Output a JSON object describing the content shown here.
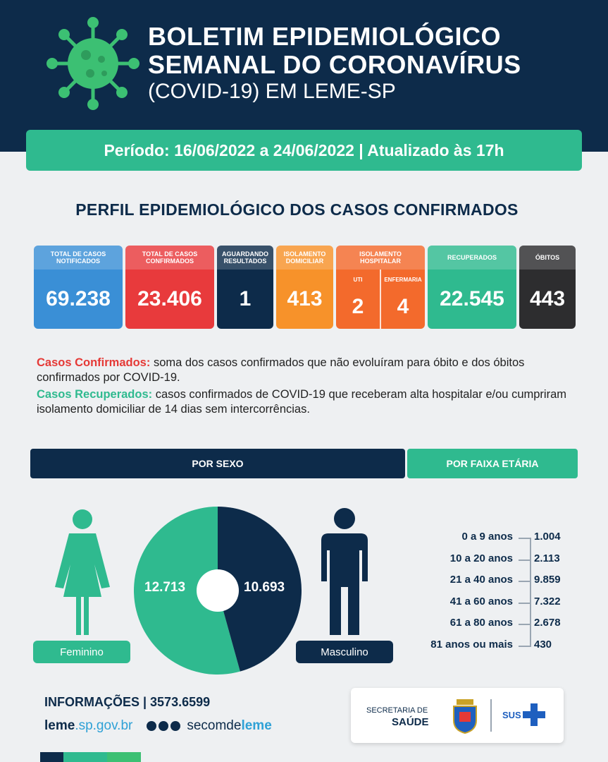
{
  "header": {
    "line1": "BOLETIM EPIDEMIOLÓGICO",
    "line2": "SEMANAL DO CORONAVÍRUS",
    "line3": "(COVID-19) EM LEME-SP"
  },
  "period": "Período: 16/06/2022 a 24/06/2022 | Atualizado às 17h",
  "section_title": "PERFIL EPIDEMIOLÓGICO DOS CASOS CONFIRMADOS",
  "cards": {
    "notificados": {
      "label": "TOTAL DE CASOS NOTIFICADOS",
      "value": "69.238",
      "color": "#3a8fd6"
    },
    "confirmados": {
      "label": "TOTAL DE CASOS CONFIRMADOS",
      "value": "23.406",
      "color": "#e83a3c"
    },
    "aguardando": {
      "label": "AGUARDANDO RESULTADOS",
      "value": "1",
      "color": "#0d2b4a"
    },
    "isolamento_domiciliar": {
      "label": "ISOLAMENTO DOMICILIAR",
      "value": "413",
      "color": "#f7922a"
    },
    "isolamento_hospitalar": {
      "label": "ISOLAMENTO HOSPITALAR",
      "uti_label": "UTI",
      "uti_value": "2",
      "enfermaria_label": "ENFERMARIA",
      "enfermaria_value": "4",
      "color": "#f36a2c"
    },
    "recuperados": {
      "label": "RECUPERADOS",
      "value": "22.545",
      "color": "#2fba8f"
    },
    "obitos": {
      "label": "ÓBITOS",
      "value": "443",
      "color": "#2d2d2f"
    }
  },
  "definitions": {
    "confirmed_term": "Casos Confirmados:",
    "confirmed_text": " soma dos casos confirmados que não evoluíram para óbito e dos óbitos confirmados por COVID-19.",
    "recovered_term": "Casos Recuperados:",
    "recovered_text": " casos confirmados de COVID-19 que receberam alta hospitalar e/ou cumpriram isolamento domiciliar de 14 dias sem intercorrências."
  },
  "by_sex": {
    "title": "POR SEXO",
    "female_label": "Feminino",
    "female_value": "12.713",
    "female_number": 12713,
    "male_label": "Masculino",
    "male_value": "10.693",
    "male_number": 10693
  },
  "by_age": {
    "title": "POR FAIXA ETÁRIA",
    "rows": [
      {
        "range": "0 a 9 anos",
        "value": "1.004"
      },
      {
        "range": "10 a 20 anos",
        "value": "2.113"
      },
      {
        "range": "21 a 40 anos",
        "value": "9.859"
      },
      {
        "range": "41 a 60 anos",
        "value": "7.322"
      },
      {
        "range": "61 a 80 anos",
        "value": "2.678"
      },
      {
        "range": "81 anos ou mais",
        "value": "430"
      }
    ]
  },
  "footer": {
    "info": "INFORMAÇÕES | 3573.6599",
    "site_bold": "leme",
    "site_rest": ".sp.gov.br",
    "social_prefix": "secomde",
    "social_suffix": "leme",
    "sec_line1": "SECRETARIA DE",
    "sec_line2": "SAÚDE",
    "sus": "SUS"
  },
  "colors": {
    "navy": "#0d2b4a",
    "green": "#2fba8f"
  }
}
